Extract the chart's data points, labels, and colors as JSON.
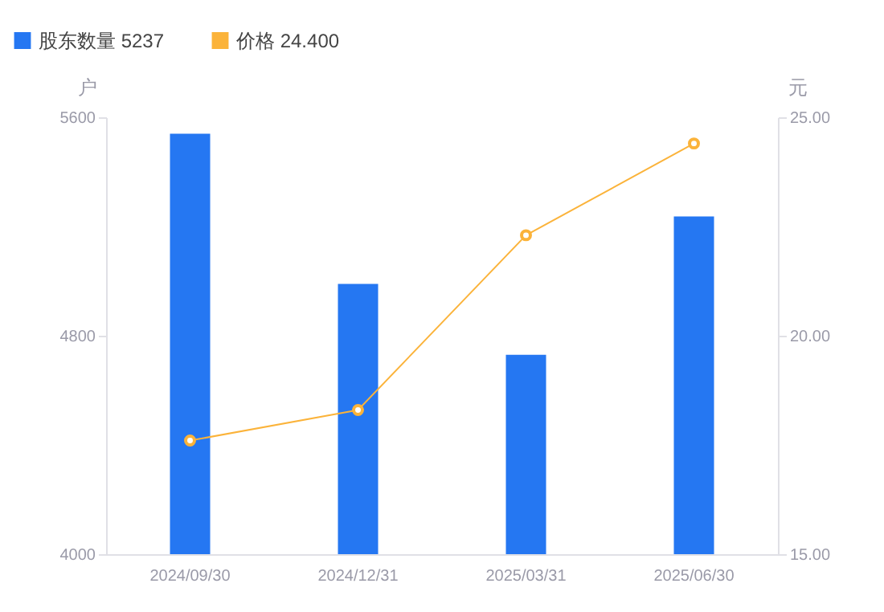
{
  "chart_data": {
    "type": "bar",
    "categories": [
      "2024/09/30",
      "2024/12/31",
      "2025/03/31",
      "2025/06/30"
    ],
    "ylabel": "户",
    "y2label": "元",
    "ylim": [
      4000,
      5600
    ],
    "yticks": [
      4000,
      4800,
      5600
    ],
    "y2lim": [
      15,
      25
    ],
    "y2ticks": [
      {
        "value": 15,
        "label": "15.00"
      },
      {
        "value": 20,
        "label": "20.00"
      },
      {
        "value": 25,
        "label": "25.00"
      }
    ],
    "series": [
      {
        "name": "股东数量 5237",
        "color": "#2577f2",
        "values": [
          5540,
          4990,
          4730,
          5237
        ]
      },
      {
        "name": "价格 24.400",
        "type": "line",
        "axis": "y2",
        "color": "#fbb33a",
        "values": [
          17.6,
          18.3,
          22.3,
          24.4
        ]
      }
    ],
    "legend": "top left",
    "marker": "circle",
    "line_style": "solid",
    "grid": false
  }
}
